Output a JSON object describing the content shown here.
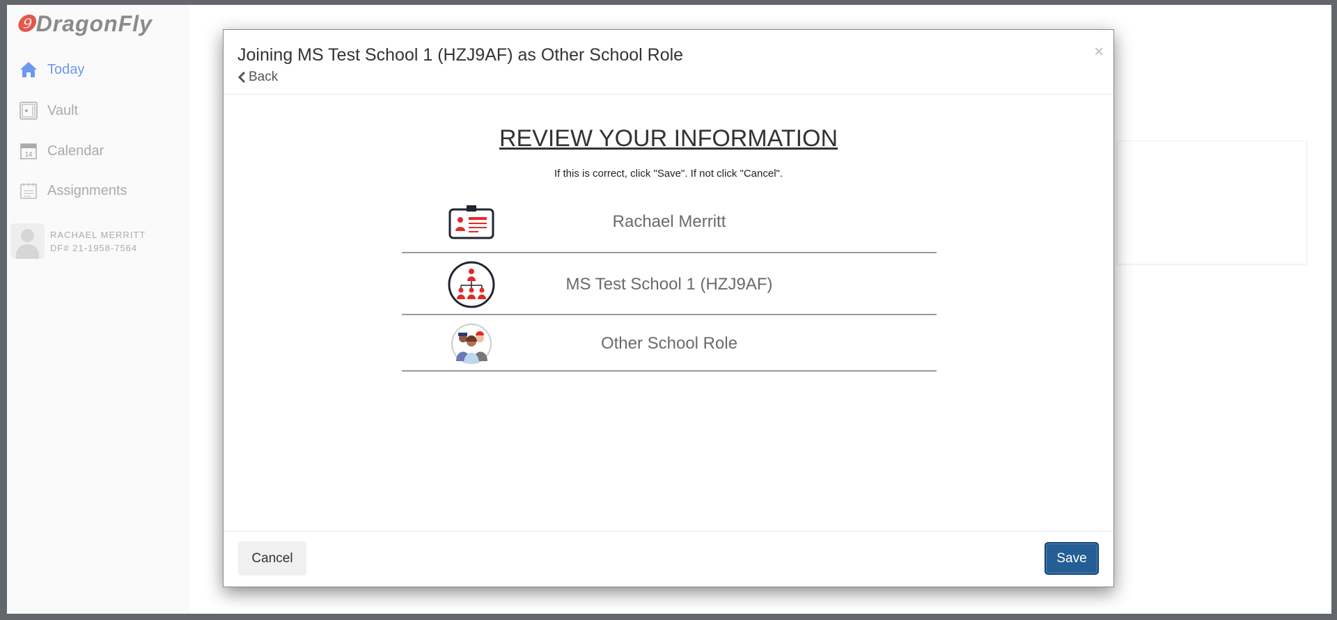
{
  "app": {
    "logo": "DragonFly"
  },
  "sidebar": {
    "items": [
      {
        "label": "Today",
        "icon": "home-icon",
        "active": true
      },
      {
        "label": "Vault",
        "icon": "vault-icon"
      },
      {
        "label": "Calendar",
        "icon": "calendar-icon",
        "day": "14"
      },
      {
        "label": "Assignments",
        "icon": "assignments-icon"
      }
    ],
    "profile": {
      "name": "RACHAEL MERRITT",
      "id": "DF# 21-1958-7564"
    }
  },
  "modal": {
    "title": "Joining MS Test School 1 (HZJ9AF) as Other School Role",
    "back_label": "Back",
    "close": "×",
    "heading": "REVIEW YOUR INFORMATION",
    "subtext": "If this is correct, click \"Save\". If not click \"Cancel\".",
    "rows": [
      {
        "icon": "id-badge-icon",
        "text": "Rachael Merritt"
      },
      {
        "icon": "org-chart-icon",
        "text": "MS Test School 1 (HZJ9AF)"
      },
      {
        "icon": "staff-group-icon",
        "text": "Other School Role"
      }
    ],
    "cancel_label": "Cancel",
    "save_label": "Save"
  },
  "colors": {
    "accent": "#245e94",
    "active_nav": "#6d98f2",
    "icon_red": "#e02b27",
    "logo_red": "#e4574b"
  }
}
